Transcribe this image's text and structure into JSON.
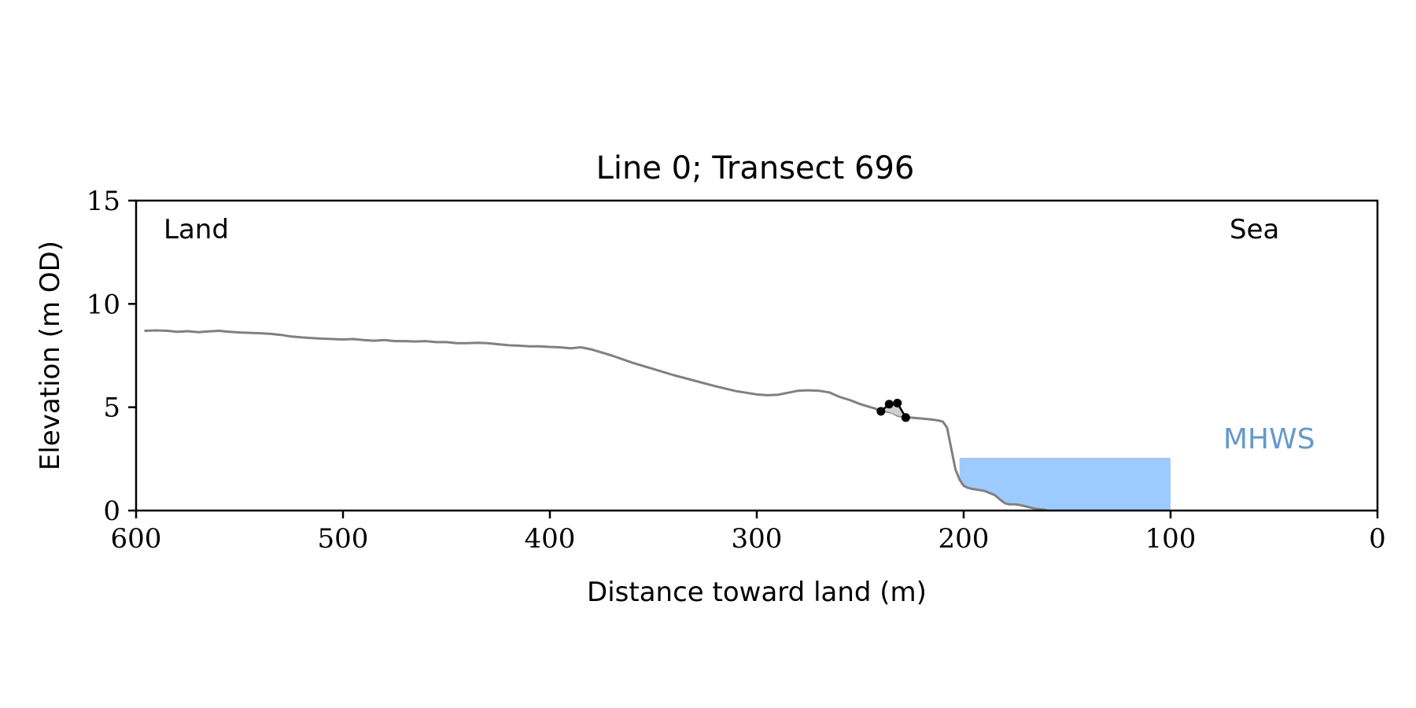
{
  "chart_data": {
    "type": "line",
    "title": "Line 0; Transect 696",
    "xlabel": "Distance toward land (m)",
    "ylabel": "Elevation (m OD)",
    "xlim": [
      600,
      0
    ],
    "ylim": [
      0,
      15
    ],
    "x_reversed": true,
    "x_ticks": [
      "600",
      "500",
      "400",
      "300",
      "200",
      "100",
      "0"
    ],
    "y_ticks": [
      "0",
      "5",
      "10",
      "15"
    ],
    "grid": false,
    "annotations": {
      "land": "Land",
      "sea": "Sea",
      "mhws": "MHWS"
    },
    "colors": {
      "profile": "#808080",
      "water": "#9ecbff",
      "mhws_label": "#6699cc",
      "points": "#000000",
      "marker_fill": "#cfcfcf"
    },
    "profile": {
      "x": [
        596,
        590,
        585,
        580,
        575,
        570,
        565,
        560,
        555,
        550,
        545,
        540,
        535,
        530,
        525,
        520,
        515,
        510,
        505,
        500,
        495,
        490,
        485,
        480,
        475,
        470,
        465,
        460,
        455,
        450,
        445,
        440,
        435,
        430,
        425,
        420,
        415,
        410,
        405,
        400,
        395,
        390,
        385,
        380,
        375,
        370,
        360,
        350,
        340,
        330,
        320,
        310,
        300,
        295,
        290,
        285,
        280,
        275,
        270,
        265,
        260,
        255,
        250,
        245,
        240,
        238,
        235,
        232,
        228,
        226,
        220,
        215,
        212,
        210,
        208,
        206,
        204,
        202,
        200,
        198,
        196,
        193,
        190,
        185,
        182,
        180,
        178,
        175,
        172,
        168,
        165,
        162,
        160
      ],
      "y": [
        8.7,
        8.72,
        8.7,
        8.65,
        8.68,
        8.63,
        8.67,
        8.7,
        8.65,
        8.62,
        8.6,
        8.58,
        8.55,
        8.5,
        8.42,
        8.38,
        8.35,
        8.32,
        8.3,
        8.28,
        8.3,
        8.25,
        8.22,
        8.25,
        8.2,
        8.2,
        8.18,
        8.2,
        8.15,
        8.15,
        8.1,
        8.1,
        8.12,
        8.1,
        8.05,
        8.0,
        7.98,
        7.95,
        7.95,
        7.92,
        7.9,
        7.85,
        7.9,
        7.8,
        7.65,
        7.5,
        7.15,
        6.85,
        6.55,
        6.28,
        6.02,
        5.78,
        5.62,
        5.58,
        5.6,
        5.7,
        5.8,
        5.82,
        5.8,
        5.72,
        5.5,
        5.35,
        5.15,
        5.0,
        4.85,
        4.8,
        4.75,
        4.6,
        4.5,
        4.5,
        4.45,
        4.4,
        4.35,
        4.3,
        4.0,
        3.0,
        2.0,
        1.5,
        1.2,
        1.1,
        1.05,
        1.0,
        0.95,
        0.75,
        0.5,
        0.35,
        0.3,
        0.3,
        0.25,
        0.15,
        0.08,
        0.05,
        0.02
      ]
    },
    "observed_points": {
      "x": [
        240,
        236,
        232,
        228
      ],
      "y": [
        4.8,
        5.15,
        5.2,
        4.5
      ]
    },
    "mhws_fill": {
      "x_start": 202,
      "x_end": 100,
      "level": 2.55
    }
  }
}
